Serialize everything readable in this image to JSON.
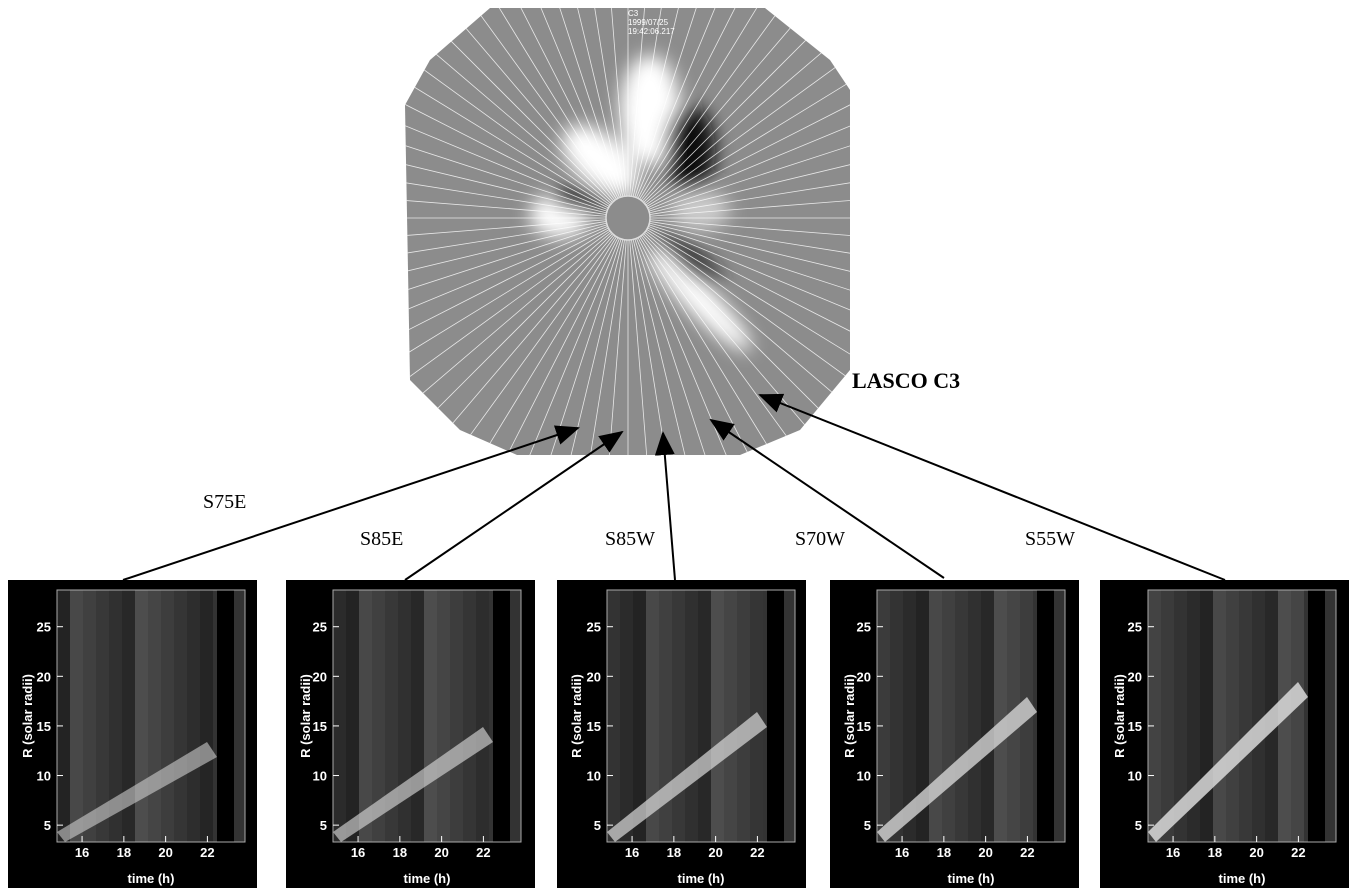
{
  "image": {
    "label": "LASCO C3",
    "stamp": [
      "C3",
      "1999/07/25",
      "19:42:06.217"
    ]
  },
  "panels": [
    {
      "label": "S75E"
    },
    {
      "label": "S85E"
    },
    {
      "label": "S85W"
    },
    {
      "label": "S70W"
    },
    {
      "label": "S55W"
    }
  ],
  "axes": {
    "xlabel": "time (h)",
    "ylabel": "R (solar radii)",
    "xlim": [
      14.8,
      23.8
    ],
    "ylim": [
      3.3,
      28.7
    ],
    "xticks": [
      16,
      18,
      20,
      22
    ],
    "yticks": [
      5,
      10,
      15,
      20,
      25
    ]
  }
}
